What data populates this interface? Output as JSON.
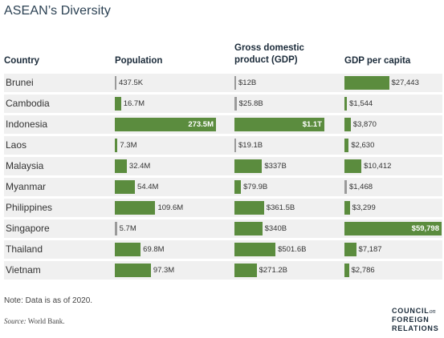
{
  "chart_data": {
    "type": "table",
    "title": "ASEAN’s Diversity",
    "columns": [
      "Country",
      "Population",
      "Gross domestic product (GDP)",
      "GDP per capita"
    ],
    "column_header_lines": {
      "country": [
        "Country"
      ],
      "population": [
        "Population"
      ],
      "gdp": [
        "Gross domestic",
        "product (GDP)"
      ],
      "gdp_per_capita": [
        "GDP per capita"
      ]
    },
    "bar_color": "#5b8c3e",
    "row_background": "#f0f0f0",
    "rows": [
      {
        "country": "Brunei",
        "population": 0.4375,
        "population_label": "437.5K",
        "gdp": 12,
        "gdp_label": "$12B",
        "gdp_per_capita": 27443,
        "gdp_per_capita_label": "$27,443"
      },
      {
        "country": "Cambodia",
        "population": 16.7,
        "population_label": "16.7M",
        "gdp": 25.8,
        "gdp_label": "$25.8B",
        "gdp_per_capita": 1544,
        "gdp_per_capita_label": "$1,544"
      },
      {
        "country": "Indonesia",
        "population": 273.5,
        "population_label": "273.5M",
        "gdp": 1100,
        "gdp_label": "$1.1T",
        "gdp_per_capita": 3870,
        "gdp_per_capita_label": "$3,870"
      },
      {
        "country": "Laos",
        "population": 7.3,
        "population_label": "7.3M",
        "gdp": 19.1,
        "gdp_label": "$19.1B",
        "gdp_per_capita": 2630,
        "gdp_per_capita_label": "$2,630"
      },
      {
        "country": "Malaysia",
        "population": 32.4,
        "population_label": "32.4M",
        "gdp": 337,
        "gdp_label": "$337B",
        "gdp_per_capita": 10412,
        "gdp_per_capita_label": "$10,412"
      },
      {
        "country": "Myanmar",
        "population": 54.4,
        "population_label": "54.4M",
        "gdp": 79.9,
        "gdp_label": "$79.9B",
        "gdp_per_capita": 1468,
        "gdp_per_capita_label": "$1,468"
      },
      {
        "country": "Philippines",
        "population": 109.6,
        "population_label": "109.6M",
        "gdp": 361.5,
        "gdp_label": "$361.5B",
        "gdp_per_capita": 3299,
        "gdp_per_capita_label": "$3,299"
      },
      {
        "country": "Singapore",
        "population": 5.7,
        "population_label": "5.7M",
        "gdp": 340,
        "gdp_label": "$340B",
        "gdp_per_capita": 59798,
        "gdp_per_capita_label": "$59,798"
      },
      {
        "country": "Thailand",
        "population": 69.8,
        "population_label": "69.8M",
        "gdp": 501.6,
        "gdp_label": "$501.6B",
        "gdp_per_capita": 7187,
        "gdp_per_capita_label": "$7,187"
      },
      {
        "country": "Vietnam",
        "population": 97.3,
        "population_label": "97.3M",
        "gdp": 271.2,
        "gdp_label": "$271.2B",
        "gdp_per_capita": 2786,
        "gdp_per_capita_label": "$2,786"
      }
    ],
    "note": "Note: Data is as of 2020.",
    "source_label": "Source:",
    "source_value": "World Bank."
  },
  "logo": {
    "line1": "COUNCIL",
    "line1_suffix": "on",
    "line2": "FOREIGN",
    "line3": "RELATIONS"
  }
}
